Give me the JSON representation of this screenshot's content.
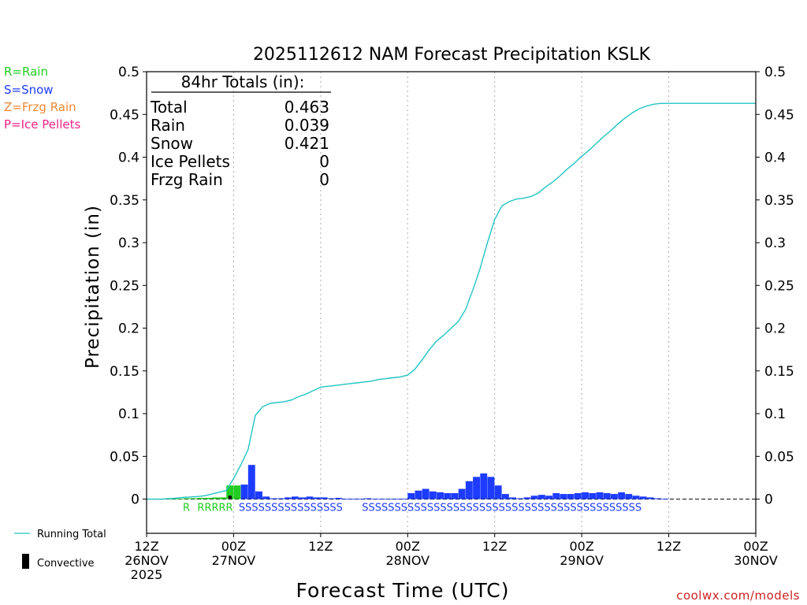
{
  "chart_data": {
    "type": "bar",
    "title": "2025112612 NAM Forecast Precipitation KSLK",
    "xlabel": "Forecast Time (UTC)",
    "ylabel": "Precipitation (in)",
    "ylim": [
      -0.04,
      0.5
    ],
    "xlim_hours": [
      0,
      84
    ],
    "y_ticks": [
      0,
      0.05,
      0.1,
      0.15,
      0.2,
      0.25,
      0.3,
      0.35,
      0.4,
      0.45,
      0.5
    ],
    "y_tick_labels": [
      "0",
      "0.05",
      "0.1",
      "0.15",
      "0.2",
      "0.25",
      "0.3",
      "0.35",
      "0.4",
      "0.45",
      "0.5"
    ],
    "x_ticks": [
      {
        "hour": 0,
        "line1": "12Z",
        "line2": "26NOV",
        "line3": "2025"
      },
      {
        "hour": 12,
        "line1": "00Z",
        "line2": "27NOV",
        "line3": ""
      },
      {
        "hour": 24,
        "line1": "12Z",
        "line2": "",
        "line3": ""
      },
      {
        "hour": 36,
        "line1": "00Z",
        "line2": "28NOV",
        "line3": ""
      },
      {
        "hour": 48,
        "line1": "12Z",
        "line2": "",
        "line3": ""
      },
      {
        "hour": 60,
        "line1": "00Z",
        "line2": "29NOV",
        "line3": ""
      },
      {
        "hour": 72,
        "line1": "12Z",
        "line2": "",
        "line3": ""
      },
      {
        "hour": 84,
        "line1": "00Z",
        "line2": "30NOV",
        "line3": ""
      }
    ],
    "grid_hours": [
      12,
      24,
      36,
      48,
      60,
      72
    ],
    "bar_hours": [
      0,
      1,
      2,
      3,
      4,
      5,
      6,
      7,
      8,
      9,
      10,
      11,
      12,
      13,
      14,
      15,
      16,
      17,
      18,
      19,
      20,
      21,
      22,
      23,
      24,
      25,
      26,
      27,
      28,
      29,
      30,
      31,
      32,
      33,
      34,
      35,
      36,
      37,
      38,
      39,
      40,
      41,
      42,
      43,
      44,
      45,
      46,
      47,
      48,
      49,
      50,
      51,
      52,
      53,
      54,
      55,
      56,
      57,
      58,
      59,
      60,
      61,
      62,
      63,
      64,
      65,
      66,
      67,
      68,
      69,
      70,
      71
    ],
    "series": [
      {
        "name": "Hourly Precipitation",
        "values": [
          0,
          0,
          0,
          0.0005,
          0.0005,
          0.001,
          0.001,
          0.0015,
          0.0015,
          0.002,
          0.002,
          0.016,
          0.016,
          0.017,
          0.04,
          0.009,
          0.003,
          0.001,
          0.001,
          0.002,
          0.003,
          0.002,
          0.003,
          0.002,
          0.002,
          0.001,
          0.0015,
          0.0005,
          0.0005,
          0.0005,
          0.001,
          0.0005,
          0.0005,
          0.0005,
          0.0005,
          0.0005,
          0.007,
          0.01,
          0.012,
          0.009,
          0.008,
          0.007,
          0.007,
          0.012,
          0.021,
          0.026,
          0.03,
          0.026,
          0.016,
          0.006,
          0.002,
          0.001,
          0.002,
          0.004,
          0.005,
          0.004,
          0.007,
          0.006,
          0.006,
          0.007,
          0.008,
          0.007,
          0.008,
          0.007,
          0.006,
          0.008,
          0.006,
          0.004,
          0.003,
          0.002,
          0.001,
          0.0005
        ]
      },
      {
        "name": "Running Total",
        "hours": [
          0,
          2,
          4,
          5,
          6,
          7,
          8,
          9,
          10,
          11,
          12,
          13,
          14,
          15,
          16,
          17,
          18,
          19,
          20,
          21,
          22,
          23,
          24,
          25,
          26,
          27,
          28,
          29,
          30,
          31,
          32,
          33,
          34,
          35,
          36,
          37,
          38,
          39,
          40,
          41,
          42,
          43,
          44,
          45,
          46,
          47,
          48,
          49,
          50,
          51,
          52,
          53,
          54,
          55,
          56,
          57,
          58,
          59,
          60,
          61,
          62,
          63,
          64,
          65,
          66,
          67,
          68,
          69,
          70,
          71,
          72,
          84
        ],
        "values": [
          0,
          0,
          0.001,
          0.002,
          0.0025,
          0.003,
          0.004,
          0.006,
          0.008,
          0.01,
          0.024,
          0.04,
          0.058,
          0.098,
          0.108,
          0.112,
          0.113,
          0.114,
          0.116,
          0.12,
          0.123,
          0.127,
          0.131,
          0.132,
          0.133,
          0.134,
          0.135,
          0.136,
          0.137,
          0.138,
          0.14,
          0.141,
          0.142,
          0.143,
          0.145,
          0.152,
          0.163,
          0.175,
          0.185,
          0.192,
          0.2,
          0.208,
          0.222,
          0.245,
          0.27,
          0.3,
          0.327,
          0.343,
          0.348,
          0.351,
          0.352,
          0.354,
          0.358,
          0.365,
          0.371,
          0.378,
          0.386,
          0.393,
          0.401,
          0.408,
          0.416,
          0.424,
          0.431,
          0.439,
          0.446,
          0.452,
          0.457,
          0.46,
          0.462,
          0.463,
          0.463,
          0.463
        ]
      }
    ],
    "convective": [
      {
        "hour": 11,
        "value": 0.004
      }
    ],
    "precip_type_labels": [
      {
        "hour": 5,
        "text": "R"
      },
      {
        "hour": 7,
        "text": "RRRRR"
      },
      {
        "hour": 12.7,
        "text": "SSSSSSSSSSSSSSSS"
      },
      {
        "hour": 29.7,
        "text": "SSSSSSSSSSSSSSSSSSSSSSSSSSSSSSSSSSSSSSSSSSS"
      }
    ],
    "colors": {
      "rain": "#22cc22",
      "snow": "#1e3cff",
      "frzg_rain": "#ee8833",
      "ice_pellets": "#ee2288",
      "running_total": "#22c4c4",
      "convective": "#000000",
      "axis": "#000000",
      "grid": "#aaaaaa",
      "credit": "#cc2222"
    },
    "totals_box": {
      "header": "84hr Totals (in):",
      "rows": [
        {
          "label": "Total",
          "value": "0.463"
        },
        {
          "label": "Rain",
          "value": "0.039"
        },
        {
          "label": "Snow",
          "value": "0.421"
        },
        {
          "label": "Ice Pellets",
          "value": "0"
        },
        {
          "label": "Frzg Rain",
          "value": "0"
        }
      ]
    },
    "type_legend": [
      {
        "text": "R=Rain",
        "color": "#22cc22"
      },
      {
        "text": "S=Snow",
        "color": "#1e3cff"
      },
      {
        "text": "Z=Frzg Rain",
        "color": "#ee8833"
      },
      {
        "text": "P=Ice Pellets",
        "color": "#ee2288"
      }
    ],
    "bottom_legend": {
      "running_total": "Running Total",
      "convective": "Convective"
    },
    "credit": "coolwx.com/models"
  }
}
